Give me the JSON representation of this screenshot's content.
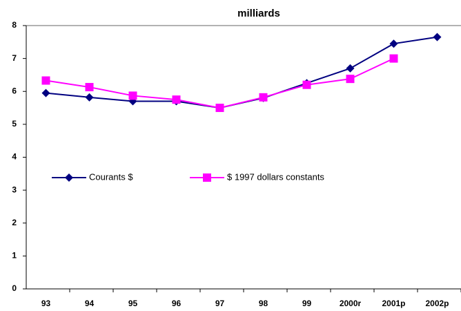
{
  "chart_data": {
    "type": "line",
    "title": "milliards",
    "categories": [
      "93",
      "94",
      "95",
      "96",
      "97",
      "98",
      "99",
      "2000r",
      "2001p",
      "2002p"
    ],
    "series": [
      {
        "name": "Courants $",
        "color": "#000080",
        "marker": "diamond",
        "values": [
          5.95,
          5.82,
          5.7,
          5.7,
          5.5,
          5.8,
          6.25,
          6.7,
          7.45,
          7.65
        ]
      },
      {
        "name": "$ 1997 dollars constants",
        "color": "#ff00ff",
        "marker": "square",
        "values": [
          6.33,
          6.13,
          5.87,
          5.75,
          5.5,
          5.82,
          6.2,
          6.38,
          7.0,
          null
        ]
      }
    ],
    "ylim": [
      0,
      8
    ],
    "yticks": [
      0,
      1,
      2,
      3,
      4,
      5,
      6,
      7,
      8
    ],
    "grid": false
  }
}
